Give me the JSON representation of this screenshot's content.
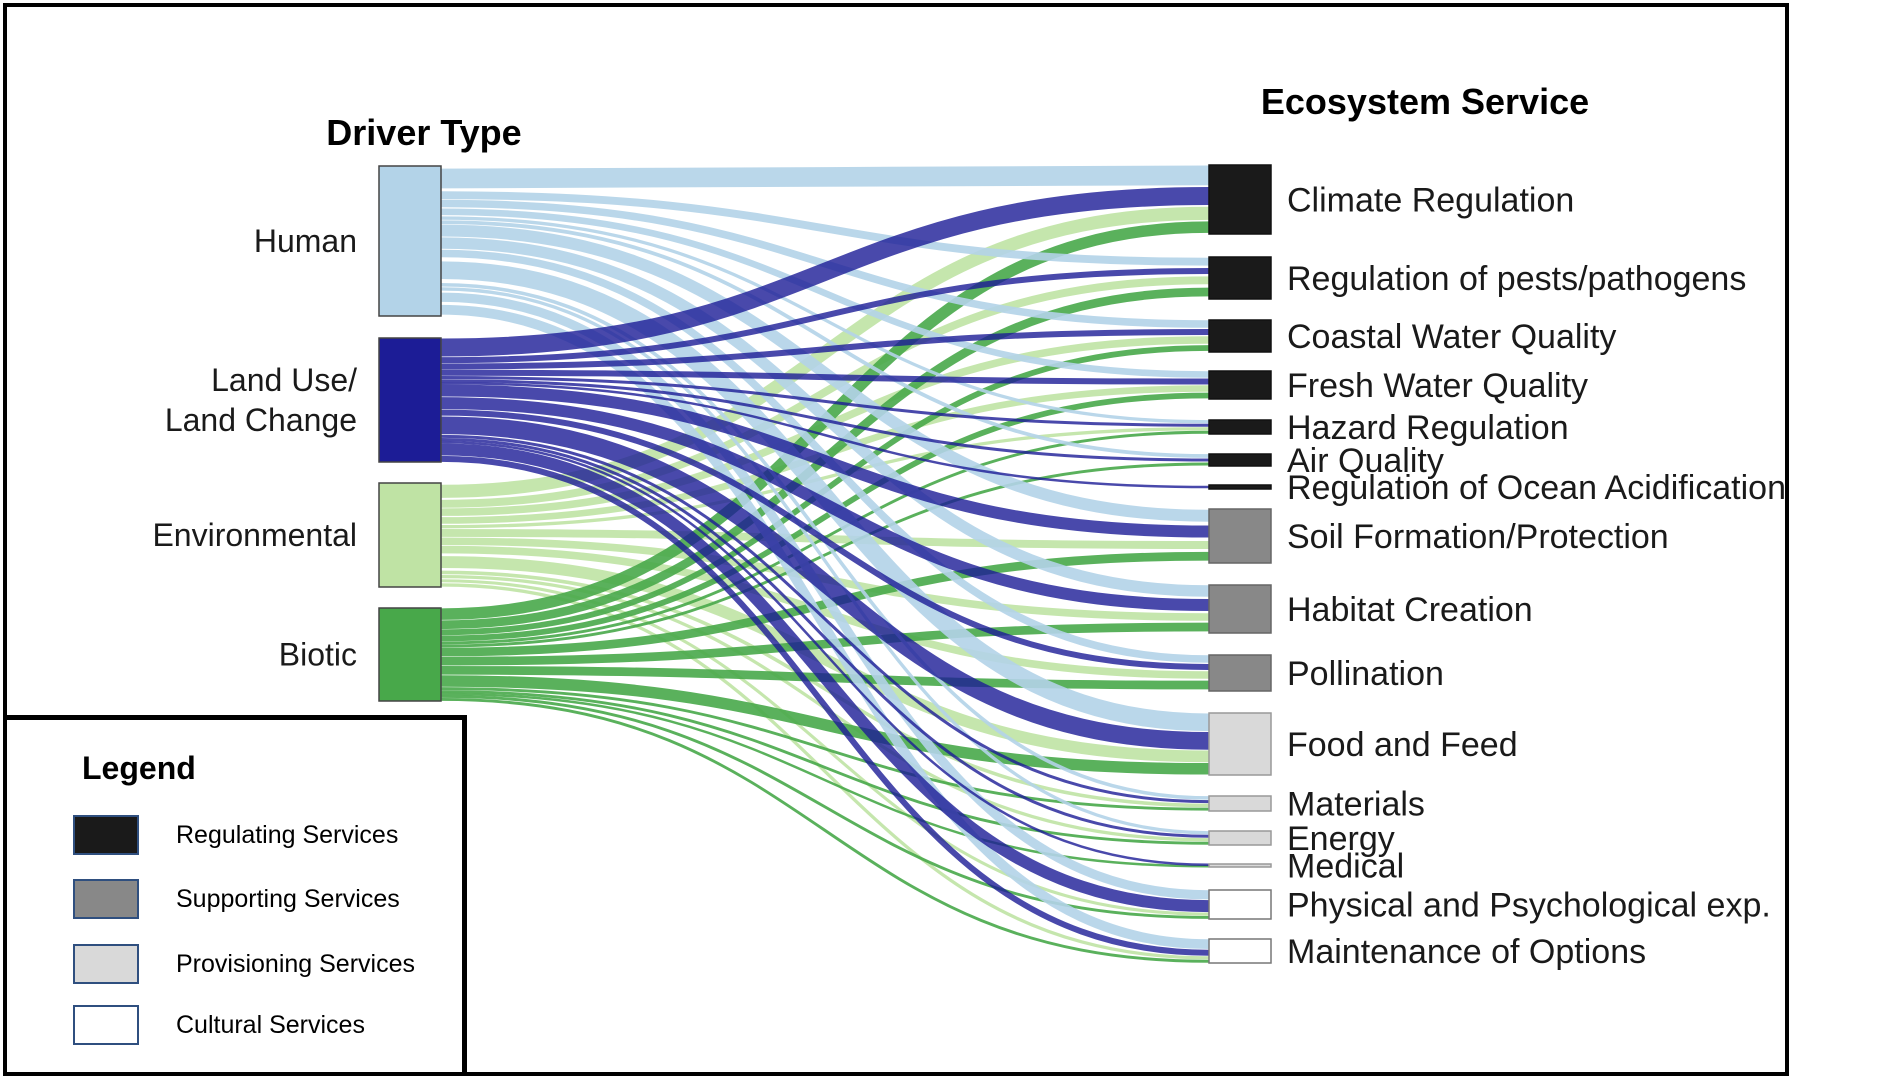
{
  "headers": {
    "driver": "Driver Type",
    "service": "Ecosystem Service"
  },
  "drivers": [
    {
      "key": "human",
      "lines": [
        "Human"
      ],
      "color": "#b3d3e8"
    },
    {
      "key": "landuse",
      "lines": [
        "Land Use/",
        "Land Change"
      ],
      "color": "#1c1c96"
    },
    {
      "key": "environmental",
      "lines": [
        "Environmental"
      ],
      "color": "#bfe3a4"
    },
    {
      "key": "biotic",
      "lines": [
        "Biotic"
      ],
      "color": "#48a84a"
    }
  ],
  "services": [
    {
      "key": "climate",
      "label": "Climate Regulation",
      "category": "regulating"
    },
    {
      "key": "pests",
      "label": "Regulation of pests/pathogens",
      "category": "regulating"
    },
    {
      "key": "coastal",
      "label": "Coastal Water Quality",
      "category": "regulating"
    },
    {
      "key": "fresh",
      "label": "Fresh Water Quality",
      "category": "regulating"
    },
    {
      "key": "hazard",
      "label": "Hazard Regulation",
      "category": "regulating"
    },
    {
      "key": "air",
      "label": "Air Quality",
      "category": "regulating"
    },
    {
      "key": "ocean",
      "label": "Regulation of Ocean Acidification",
      "category": "regulating"
    },
    {
      "key": "soil",
      "label": "Soil Formation/Protection",
      "category": "supporting"
    },
    {
      "key": "habitat",
      "label": "Habitat Creation",
      "category": "supporting"
    },
    {
      "key": "pollination",
      "label": "Pollination",
      "category": "supporting"
    },
    {
      "key": "food",
      "label": "Food and Feed",
      "category": "provisioning"
    },
    {
      "key": "materials",
      "label": "Materials",
      "category": "provisioning"
    },
    {
      "key": "energy",
      "label": "Energy",
      "category": "provisioning"
    },
    {
      "key": "medical",
      "label": "Medical",
      "category": "provisioning"
    },
    {
      "key": "physical",
      "label": "Physical and Psychological exp.",
      "category": "cultural"
    },
    {
      "key": "options",
      "label": "Maintenance of Options",
      "category": "cultural"
    }
  ],
  "legend": {
    "title": "Legend",
    "items": [
      {
        "category": "regulating",
        "label": "Regulating Services",
        "color": "#1a1a1a"
      },
      {
        "category": "supporting",
        "label": "Supporting Services",
        "color": "#888888"
      },
      {
        "category": "provisioning",
        "label": "Provisioning Services",
        "color": "#d9d9d9"
      },
      {
        "category": "cultural",
        "label": "Cultural Services",
        "color": "#ffffff"
      }
    ]
  },
  "flows": [
    {
      "from": "human",
      "to": "climate",
      "value": 3
    },
    {
      "from": "human",
      "to": "pests",
      "value": 1
    },
    {
      "from": "human",
      "to": "coastal",
      "value": 1
    },
    {
      "from": "human",
      "to": "fresh",
      "value": 1
    },
    {
      "from": "human",
      "to": "hazard",
      "value": 0.5
    },
    {
      "from": "human",
      "to": "air",
      "value": 0.5
    },
    {
      "from": "human",
      "to": "soil",
      "value": 1.5
    },
    {
      "from": "human",
      "to": "habitat",
      "value": 1.5
    },
    {
      "from": "human",
      "to": "pollination",
      "value": 1
    },
    {
      "from": "human",
      "to": "food",
      "value": 3
    },
    {
      "from": "human",
      "to": "materials",
      "value": 0.5
    },
    {
      "from": "human",
      "to": "energy",
      "value": 0.5
    },
    {
      "from": "human",
      "to": "physical",
      "value": 1.5
    },
    {
      "from": "human",
      "to": "options",
      "value": 1.5
    },
    {
      "from": "landuse",
      "to": "climate",
      "value": 3
    },
    {
      "from": "landuse",
      "to": "pests",
      "value": 1
    },
    {
      "from": "landuse",
      "to": "coastal",
      "value": 1
    },
    {
      "from": "landuse",
      "to": "fresh",
      "value": 1
    },
    {
      "from": "landuse",
      "to": "hazard",
      "value": 0.5
    },
    {
      "from": "landuse",
      "to": "air",
      "value": 0.5
    },
    {
      "from": "landuse",
      "to": "ocean",
      "value": 0.3
    },
    {
      "from": "landuse",
      "to": "soil",
      "value": 2
    },
    {
      "from": "landuse",
      "to": "habitat",
      "value": 2
    },
    {
      "from": "landuse",
      "to": "pollination",
      "value": 1
    },
    {
      "from": "landuse",
      "to": "food",
      "value": 3
    },
    {
      "from": "landuse",
      "to": "materials",
      "value": 0.5
    },
    {
      "from": "landuse",
      "to": "energy",
      "value": 0.5
    },
    {
      "from": "landuse",
      "to": "medical",
      "value": 0.3
    },
    {
      "from": "landuse",
      "to": "physical",
      "value": 2
    },
    {
      "from": "landuse",
      "to": "options",
      "value": 1
    },
    {
      "from": "environmental",
      "to": "climate",
      "value": 2
    },
    {
      "from": "environmental",
      "to": "pests",
      "value": 1
    },
    {
      "from": "environmental",
      "to": "coastal",
      "value": 1
    },
    {
      "from": "environmental",
      "to": "fresh",
      "value": 1
    },
    {
      "from": "environmental",
      "to": "hazard",
      "value": 0.5
    },
    {
      "from": "environmental",
      "to": "soil",
      "value": 1
    },
    {
      "from": "environmental",
      "to": "habitat",
      "value": 1
    },
    {
      "from": "environmental",
      "to": "pollination",
      "value": 1
    },
    {
      "from": "environmental",
      "to": "food",
      "value": 2
    },
    {
      "from": "environmental",
      "to": "materials",
      "value": 0.5
    },
    {
      "from": "environmental",
      "to": "energy",
      "value": 0.5
    },
    {
      "from": "environmental",
      "to": "physical",
      "value": 0.5
    },
    {
      "from": "environmental",
      "to": "options",
      "value": 0.5
    },
    {
      "from": "biotic",
      "to": "climate",
      "value": 2
    },
    {
      "from": "biotic",
      "to": "pests",
      "value": 1.5
    },
    {
      "from": "biotic",
      "to": "coastal",
      "value": 1
    },
    {
      "from": "biotic",
      "to": "fresh",
      "value": 1
    },
    {
      "from": "biotic",
      "to": "hazard",
      "value": 0.5
    },
    {
      "from": "biotic",
      "to": "air",
      "value": 0.5
    },
    {
      "from": "biotic",
      "to": "soil",
      "value": 1.5
    },
    {
      "from": "biotic",
      "to": "habitat",
      "value": 1.5
    },
    {
      "from": "biotic",
      "to": "pollination",
      "value": 1.5
    },
    {
      "from": "biotic",
      "to": "food",
      "value": 2
    },
    {
      "from": "biotic",
      "to": "materials",
      "value": 0.5
    },
    {
      "from": "biotic",
      "to": "energy",
      "value": 0.5
    },
    {
      "from": "biotic",
      "to": "medical",
      "value": 0.3
    },
    {
      "from": "biotic",
      "to": "physical",
      "value": 0.5
    },
    {
      "from": "biotic",
      "to": "options",
      "value": 0.5
    }
  ]
}
